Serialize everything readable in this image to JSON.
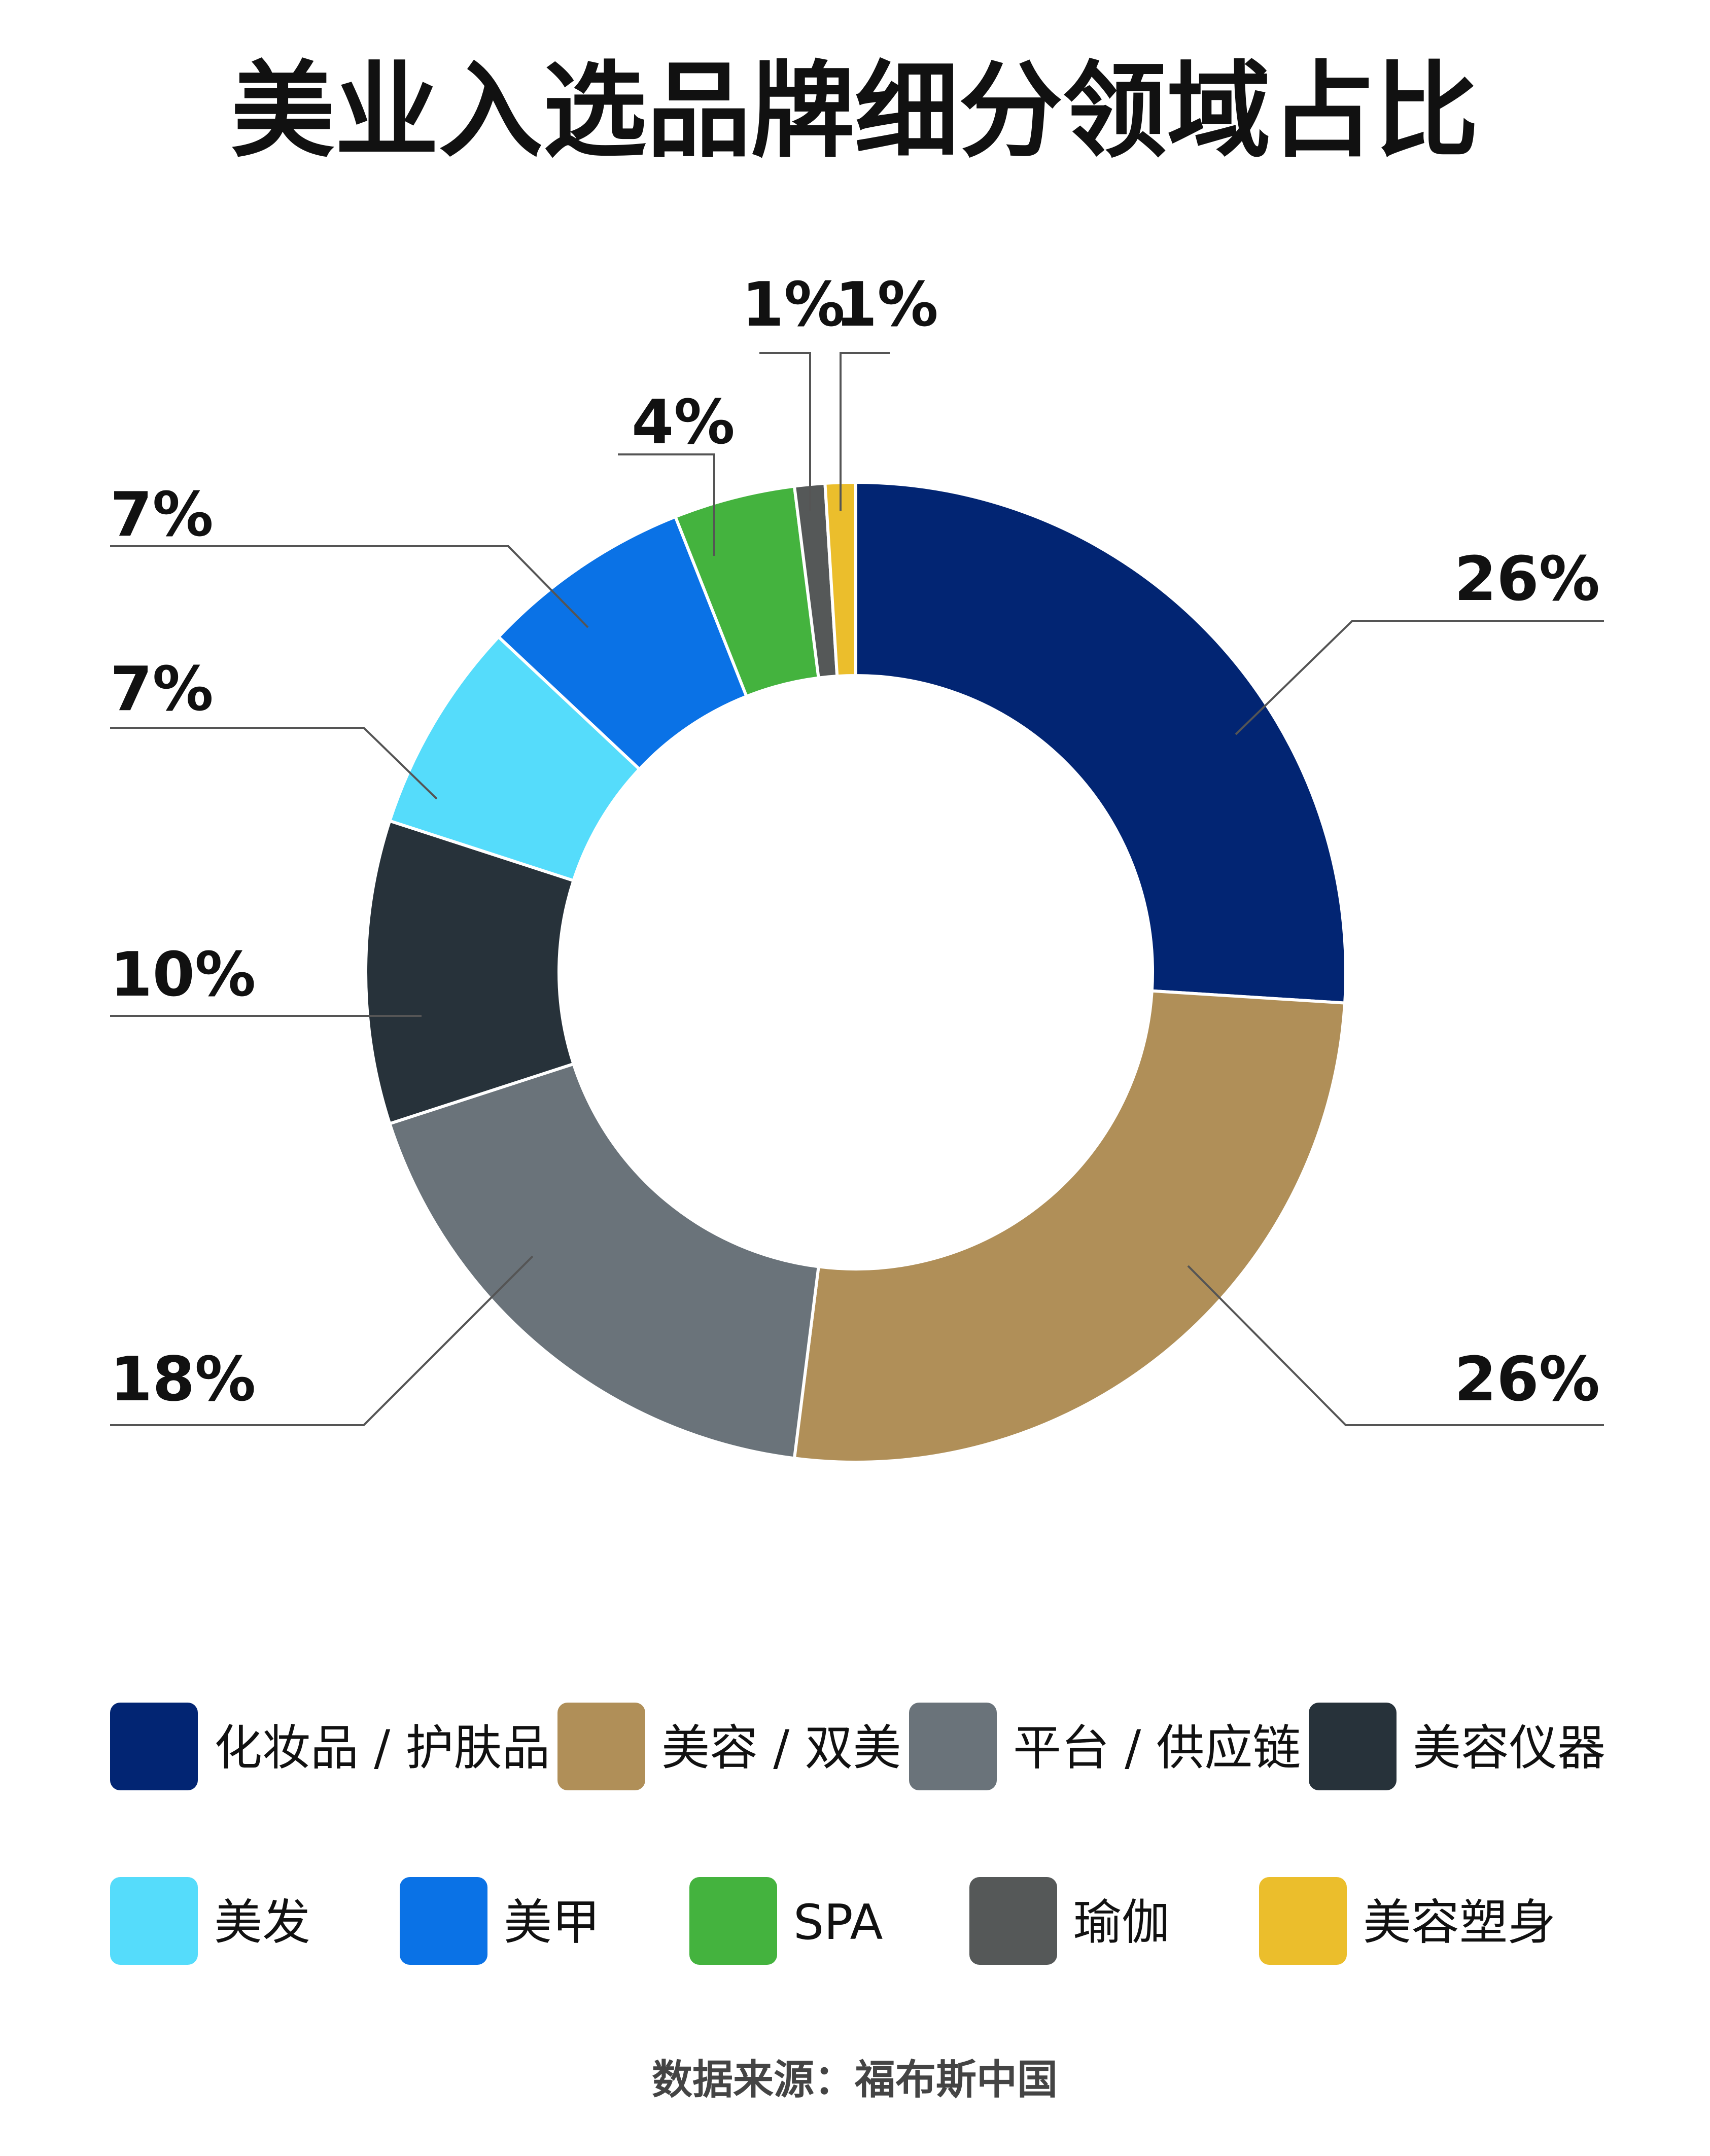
{
  "chart_data": {
    "type": "pie",
    "variant": "donut",
    "title": "美业入选品牌细分领域占比",
    "categories": [
      "化妆品 / 护肤品",
      "美容 / 双美",
      "平台 / 供应链",
      "美容仪器",
      "美发",
      "美甲",
      "SPA",
      "瑜伽",
      "美容塑身"
    ],
    "values": [
      26,
      26,
      18,
      10,
      7,
      7,
      4,
      1,
      1
    ],
    "value_labels": [
      "26%",
      "26%",
      "18%",
      "10%",
      "7%",
      "7%",
      "4%",
      "1%",
      "1%"
    ],
    "colors": [
      "#022573",
      "#B08F58",
      "#6A737A",
      "#27323A",
      "#55DCFB",
      "#0A72E6",
      "#44B33E",
      "#555858",
      "#EBBE2C"
    ],
    "legend_position": "bottom",
    "source": "数据来源：福布斯中国"
  }
}
